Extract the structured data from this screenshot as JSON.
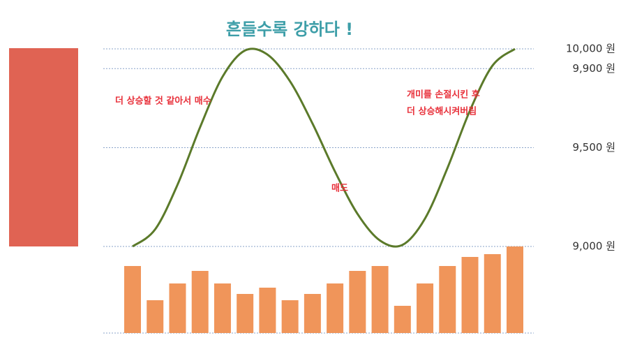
{
  "chart_data": {
    "type": "bar",
    "title": "흔들수록 강하다 !",
    "categories": [
      null,
      null,
      null,
      null,
      null,
      null,
      null,
      null,
      null,
      null,
      null,
      null,
      null,
      null,
      null,
      null,
      null,
      null
    ],
    "series": [
      {
        "type": "line",
        "color": "#5b7a2a",
        "values": [
          9000,
          9086,
          9313,
          9603,
          9859,
          9992,
          9971,
          9836,
          9622,
          9379,
          9165,
          9030,
          9008,
          9141,
          9397,
          9688,
          9915,
          10000
        ]
      },
      {
        "type": "bar",
        "axis": "y2",
        "color": "#f0955a",
        "values": [
          96,
          47,
          71,
          89,
          71,
          56,
          65,
          47,
          56,
          71,
          89,
          96,
          39,
          71,
          96,
          109,
          113,
          124
        ]
      }
    ],
    "ylim": [
      9000,
      10000
    ],
    "yticks": [
      {
        "value": 10000,
        "label": "10,000 원"
      },
      {
        "value": 9900,
        "label": "9,900 원"
      },
      {
        "value": 9500,
        "label": "9,500 원"
      },
      {
        "value": 9000,
        "label": "9,000 원"
      }
    ],
    "y2lim": [
      0,
      124
    ],
    "grid": true,
    "annotations": [
      [
        "더 상승할 것 같아서 매수"
      ],
      [
        "매도"
      ],
      [
        "개미를 손절시킨 후",
        "더 상승해시켜버림"
      ]
    ]
  }
}
